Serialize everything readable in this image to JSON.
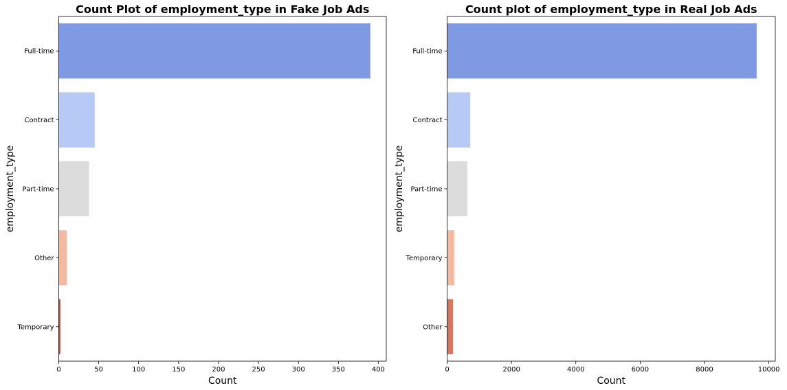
{
  "chart_data": [
    {
      "type": "bar",
      "orientation": "horizontal",
      "title": "Count Plot of employment_type in Fake Job Ads",
      "xlabel": "Count",
      "ylabel": "employment_type",
      "categories": [
        "Full-time",
        "Contract",
        "Part-time",
        "Other",
        "Temporary"
      ],
      "values": [
        390,
        45,
        38,
        10,
        2
      ],
      "colors": [
        "#7f99e3",
        "#b6caf5",
        "#dcdcdc",
        "#f3b9a1",
        "#c0402d"
      ],
      "xlim": [
        0,
        410
      ],
      "xticks": [
        0,
        50,
        100,
        150,
        200,
        250,
        300,
        350,
        400
      ],
      "grid": false
    },
    {
      "type": "bar",
      "orientation": "horizontal",
      "title": "Count plot of employment_type in Real Job Ads",
      "xlabel": "Count",
      "ylabel": "employment_type",
      "categories": [
        "Full-time",
        "Contract",
        "Part-time",
        "Temporary",
        "Other"
      ],
      "values": [
        9620,
        720,
        630,
        220,
        180
      ],
      "colors": [
        "#7f99e3",
        "#b6caf5",
        "#dcdcdc",
        "#f3b9a1",
        "#dd7460"
      ],
      "xlim": [
        0,
        10200
      ],
      "xticks": [
        0,
        2000,
        4000,
        6000,
        8000,
        10000
      ],
      "grid": false
    }
  ]
}
